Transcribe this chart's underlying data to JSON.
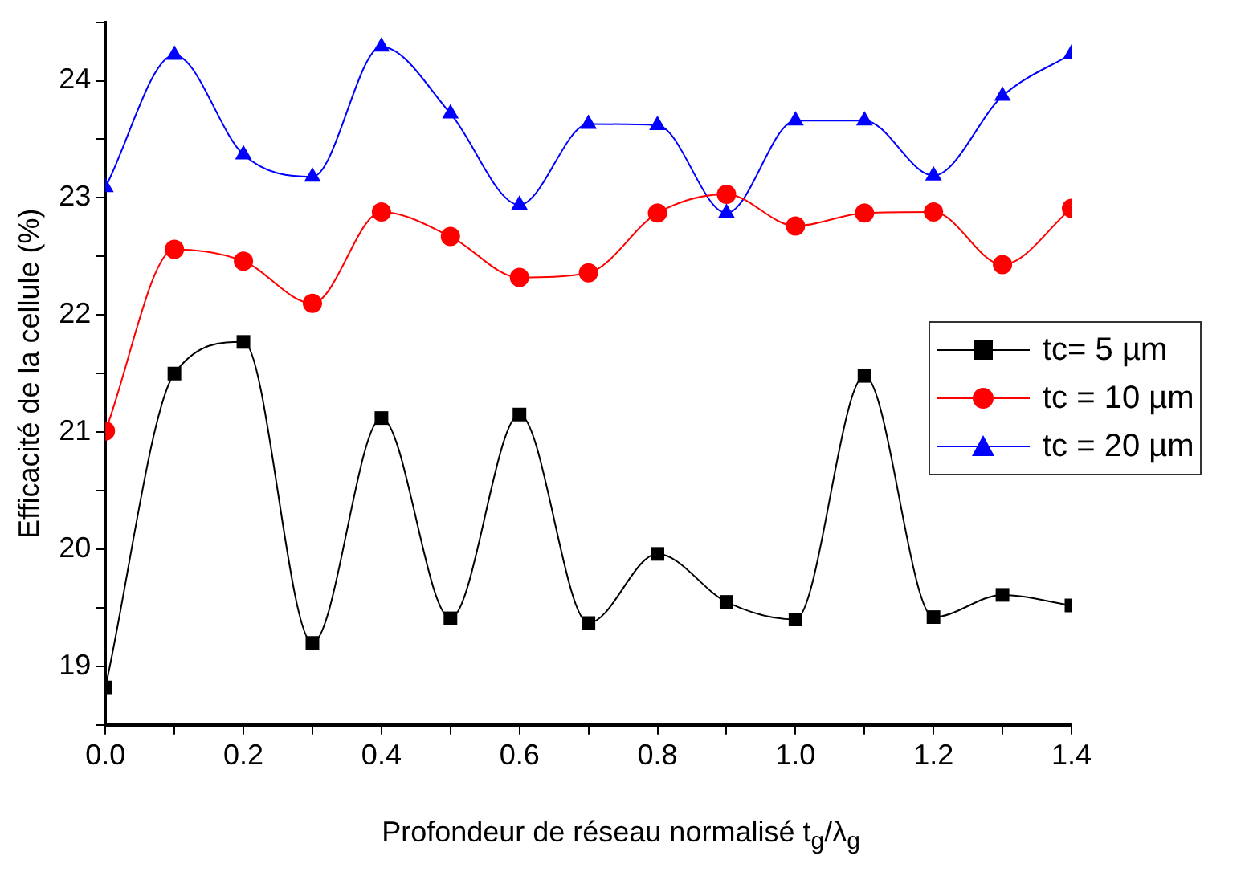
{
  "chart_data": {
    "type": "line",
    "xlabel": "Profondeur de réseau normalisé  t$_{g}$/λ$_{g}$",
    "ylabel": "Efficacité de la cellule (%)",
    "x": [
      0,
      0.1,
      0.2,
      0.3,
      0.4,
      0.5,
      0.6,
      0.7,
      0.8,
      0.9,
      1.0,
      1.1,
      1.2,
      1.3,
      1.4
    ],
    "series": [
      {
        "name": "tc= 5 µm",
        "color": "#000000",
        "marker": "square",
        "values": [
          18.82,
          21.5,
          21.77,
          19.2,
          21.12,
          19.41,
          21.15,
          19.37,
          19.96,
          19.55,
          19.4,
          21.48,
          19.42,
          19.61,
          19.52
        ]
      },
      {
        "name": "tc = 10 µm",
        "color": "#ff0000",
        "marker": "circle",
        "values": [
          21.01,
          22.56,
          22.46,
          22.1,
          22.88,
          22.67,
          22.32,
          22.36,
          22.87,
          23.03,
          22.76,
          22.87,
          22.88,
          22.43,
          22.91
        ]
      },
      {
        "name": "tc = 20 µm",
        "color": "#0000ff",
        "marker": "triangle",
        "values": [
          23.09,
          24.22,
          23.37,
          23.18,
          24.29,
          23.72,
          22.94,
          23.63,
          23.62,
          22.87,
          23.66,
          23.66,
          23.19,
          23.87,
          24.23
        ]
      }
    ],
    "xlim": [
      0,
      1.4
    ],
    "xticks": [
      {
        "value": 0,
        "label": "0.0"
      },
      {
        "value": 0.1,
        "label": null
      },
      {
        "value": 0.2,
        "label": "0.2"
      },
      {
        "value": 0.3,
        "label": null
      },
      {
        "value": 0.4,
        "label": "0.4"
      },
      {
        "value": 0.5,
        "label": null
      },
      {
        "value": 0.6,
        "label": "0.6"
      },
      {
        "value": 0.7,
        "label": null
      },
      {
        "value": 0.8,
        "label": "0.8"
      },
      {
        "value": 0.9,
        "label": null
      },
      {
        "value": 1.0,
        "label": "1.0"
      },
      {
        "value": 1.1,
        "label": null
      },
      {
        "value": 1.2,
        "label": "1.2"
      },
      {
        "value": 1.3,
        "label": null
      },
      {
        "value": 1.4,
        "label": "1.4"
      }
    ],
    "ylim": [
      18.5,
      24.5
    ],
    "yticks": [
      {
        "value": 18.5,
        "label": null
      },
      19,
      {
        "value": 19.5,
        "label": null
      },
      20,
      {
        "value": 20.5,
        "label": null
      },
      21,
      {
        "value": 21.5,
        "label": null
      },
      22,
      {
        "value": 22.5,
        "label": null
      },
      23,
      {
        "value": 23.5,
        "label": null
      },
      24,
      {
        "value": 24.5,
        "label": null
      }
    ],
    "grid": false,
    "legend": "right",
    "line_style": "solid"
  }
}
